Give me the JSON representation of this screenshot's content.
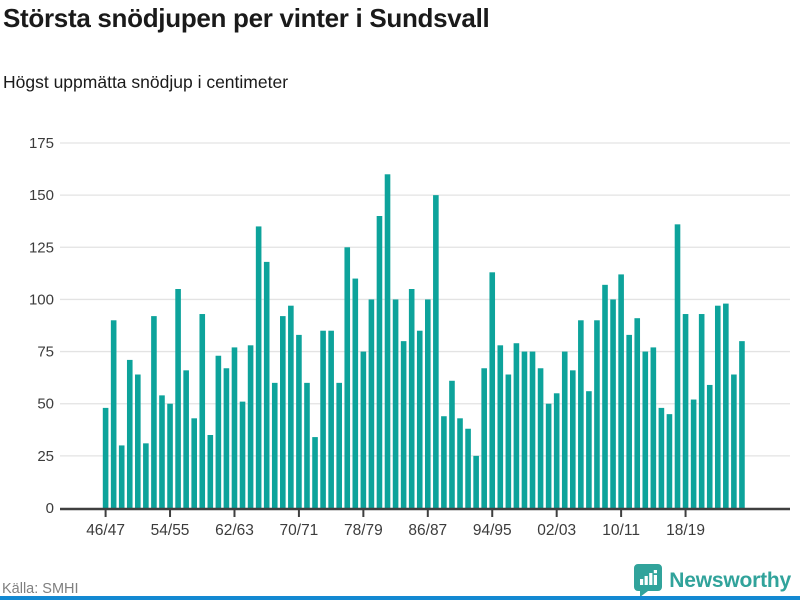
{
  "header": {
    "title": "Största snödjupen per vinter i Sundsvall",
    "subtitle": "Högst uppmätta snödjup i centimeter"
  },
  "footer": {
    "source_label": "Källa: SMHI",
    "brand": "Newsworthy"
  },
  "colors": {
    "bar": "#0da39b",
    "grid": "#e3e3e3",
    "axis": "#3f3f3f",
    "tick_text": "#3c3c3c",
    "title_text": "#1a1a1a",
    "muted_text": "#808080",
    "brand_teal": "#31a39b",
    "bottom_strip_blue": "#1389d2"
  },
  "chart_data": {
    "type": "bar",
    "title": "Största snödjupen per vinter i Sundsvall",
    "subtitle": "Högst uppmätta snödjup i centimeter",
    "unit": "cm",
    "ylabel": "",
    "xlabel": "",
    "ylim": [
      0,
      175
    ],
    "y_ticks": [
      0,
      25,
      50,
      75,
      100,
      125,
      150,
      175
    ],
    "grid": true,
    "legend": false,
    "x_tick_every": 8,
    "x_tick_labels": [
      "46/47",
      "54/55",
      "62/63",
      "70/71",
      "78/79",
      "86/87",
      "94/95",
      "02/03",
      "10/11",
      "18/19"
    ],
    "categories": [
      "46/47",
      "47/48",
      "48/49",
      "49/50",
      "50/51",
      "51/52",
      "52/53",
      "53/54",
      "54/55",
      "55/56",
      "56/57",
      "57/58",
      "58/59",
      "59/60",
      "60/61",
      "61/62",
      "62/63",
      "63/64",
      "64/65",
      "65/66",
      "66/67",
      "67/68",
      "68/69",
      "69/70",
      "70/71",
      "71/72",
      "72/73",
      "73/74",
      "74/75",
      "75/76",
      "76/77",
      "77/78",
      "78/79",
      "79/80",
      "80/81",
      "81/82",
      "82/83",
      "83/84",
      "84/85",
      "85/86",
      "86/87",
      "87/88",
      "88/89",
      "89/90",
      "90/91",
      "91/92",
      "92/93",
      "93/94",
      "94/95",
      "95/96",
      "96/97",
      "97/98",
      "98/99",
      "99/00",
      "00/01",
      "01/02",
      "02/03",
      "03/04",
      "04/05",
      "05/06",
      "06/07",
      "07/08",
      "08/09",
      "09/10",
      "10/11",
      "11/12",
      "12/13",
      "13/14",
      "14/15",
      "15/16",
      "16/17",
      "17/18",
      "18/19",
      "19/20",
      "20/21",
      "21/22",
      "22/23",
      "23/24",
      "24/25",
      "25/26"
    ],
    "values": [
      48,
      90,
      30,
      71,
      64,
      31,
      92,
      54,
      50,
      105,
      66,
      43,
      93,
      35,
      73,
      67,
      77,
      51,
      78,
      135,
      118,
      60,
      92,
      97,
      83,
      60,
      34,
      85,
      85,
      60,
      125,
      110,
      75,
      100,
      140,
      160,
      100,
      80,
      105,
      85,
      100,
      150,
      44,
      61,
      43,
      38,
      25,
      67,
      113,
      78,
      64,
      79,
      75,
      75,
      67,
      50,
      55,
      75,
      66,
      90,
      56,
      90,
      107,
      100,
      112,
      83,
      91,
      75,
      77,
      48,
      45,
      136,
      93,
      52,
      93,
      59,
      97,
      98,
      64,
      80
    ]
  }
}
